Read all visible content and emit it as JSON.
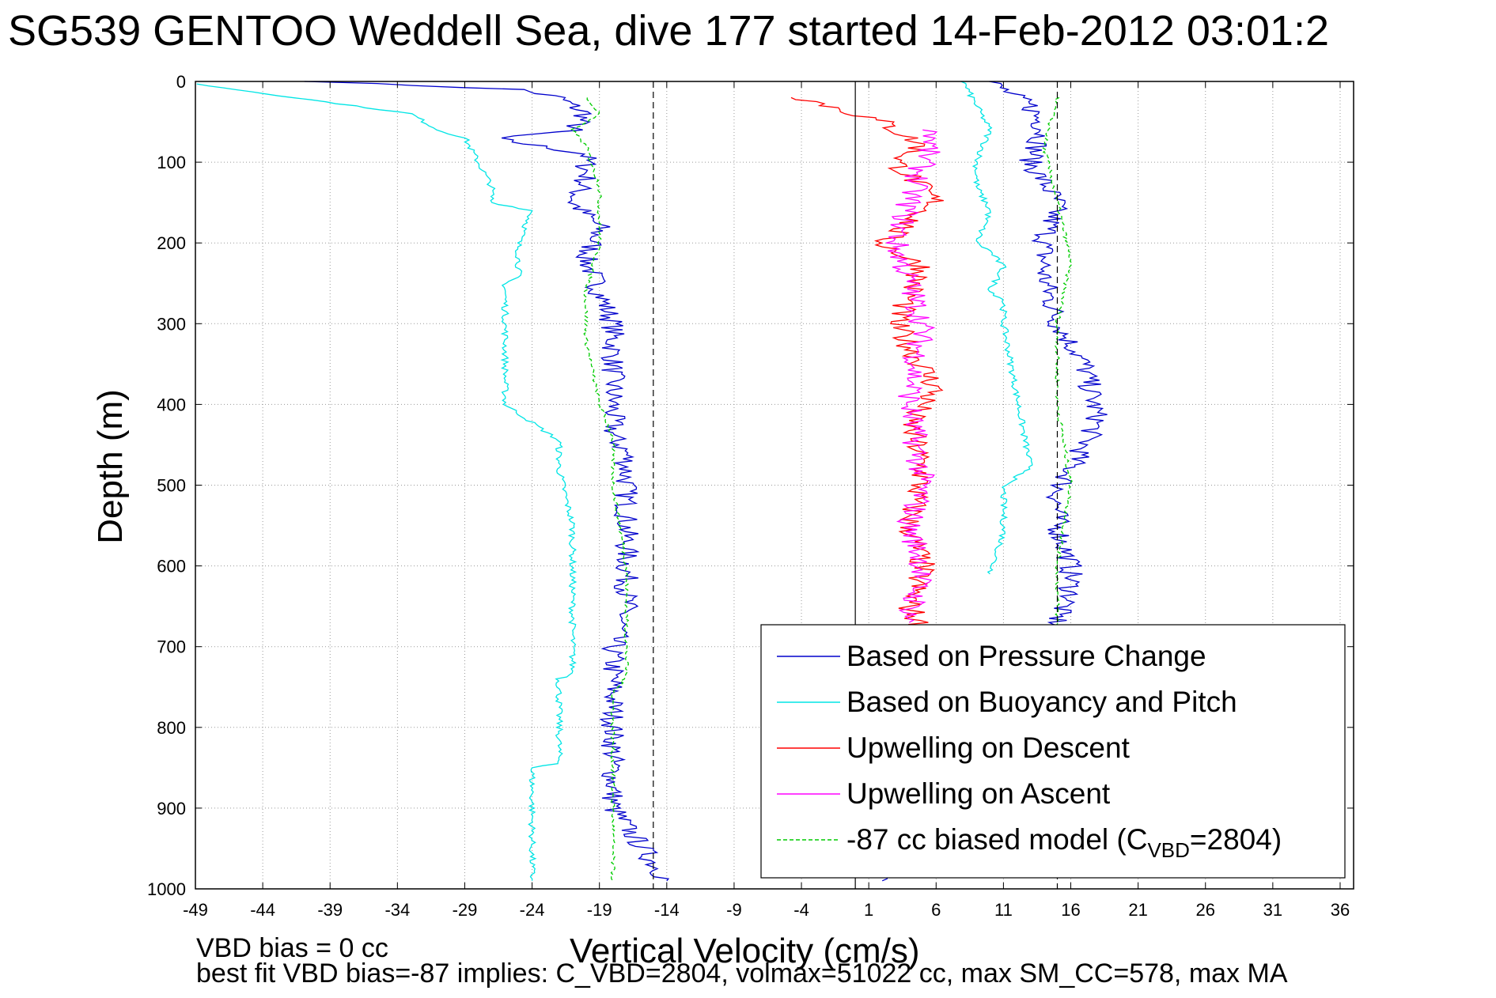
{
  "chart_data": {
    "type": "line",
    "title": "SG539 GENTOO Weddell Sea, dive 177 started 14-Feb-2012 03:01:2",
    "xlabel": "Vertical Velocity (cm/s)",
    "ylabel": "Depth (m)",
    "xlim": [
      -49,
      37
    ],
    "ylim": [
      1000,
      0
    ],
    "y_reversed": true,
    "grid": true,
    "legend_position": "bottom-right",
    "x_ticks": [
      "-49",
      "-44",
      "-39",
      "-34",
      "-29",
      "-24",
      "-19",
      "-14",
      "-9",
      "-4",
      "1",
      "6",
      "11",
      "16",
      "21",
      "26",
      "31",
      "36"
    ],
    "y_ticks": [
      "0",
      "100",
      "200",
      "300",
      "400",
      "500",
      "600",
      "700",
      "800",
      "900",
      "1000"
    ],
    "reference_lines": [
      {
        "x": -15,
        "style": "dashed"
      },
      {
        "x": 0,
        "style": "solid"
      },
      {
        "x": 15,
        "style": "dashed"
      }
    ],
    "legend_labels": {
      "pressure": "Based on Pressure Change",
      "buoyancy": "Based on Buoyancy and Pitch",
      "up_descent": "Upwelling on Descent",
      "up_ascent": "Upwelling on Ascent",
      "model_prefix": "-87 cc biased model (C",
      "model_sub": "VBD",
      "model_suffix": "=2804)"
    },
    "series": [
      {
        "key": "pressure_descent",
        "legend_key": "pressure",
        "color": "#0000cc",
        "style": "solid",
        "x": [
          -40,
          -25,
          -22,
          -20,
          -21,
          -27,
          -20,
          -20,
          -21,
          -19,
          -20,
          -19,
          -18,
          -18,
          -18,
          -18,
          -17,
          -17,
          -17,
          -17,
          -17,
          -18,
          -18,
          -18,
          -18,
          -18,
          -14
        ],
        "y": [
          0,
          10,
          20,
          40,
          60,
          70,
          90,
          120,
          150,
          180,
          220,
          260,
          300,
          350,
          400,
          440,
          460,
          500,
          550,
          600,
          650,
          700,
          750,
          800,
          850,
          900,
          990
        ]
      },
      {
        "key": "pressure_ascent",
        "color": "#0000cc",
        "style": "solid",
        "x": [
          10,
          13,
          14,
          13,
          15,
          14,
          14,
          15,
          17,
          18,
          16,
          15,
          15,
          16,
          16,
          15,
          15,
          14,
          10,
          2
        ],
        "y": [
          0,
          30,
          60,
          100,
          150,
          200,
          240,
          300,
          350,
          420,
          480,
          510,
          550,
          600,
          640,
          660,
          680,
          700,
          950,
          990
        ]
      },
      {
        "key": "buoyancy_descent",
        "legend_key": "buoyancy",
        "color": "#00e5e5",
        "style": "solid",
        "x": [
          -49,
          -33,
          -31,
          -29,
          -28,
          -27,
          -27,
          -24,
          -25,
          -25,
          -26,
          -26,
          -26,
          -22,
          -22,
          -21,
          -21,
          -21,
          -22,
          -22,
          -24,
          -24,
          -24
        ],
        "y": [
          3,
          40,
          60,
          70,
          100,
          130,
          150,
          160,
          200,
          240,
          250,
          300,
          400,
          445,
          480,
          550,
          650,
          735,
          740,
          845,
          850,
          900,
          990
        ]
      },
      {
        "key": "buoyancy_ascent",
        "color": "#00e5e5",
        "style": "solid",
        "x": [
          8,
          9,
          10,
          9,
          9,
          10,
          9,
          10,
          11,
          10,
          11,
          11,
          13,
          11,
          11,
          11,
          10
        ],
        "y": [
          0,
          30,
          60,
          100,
          130,
          160,
          200,
          210,
          230,
          260,
          270,
          300,
          480,
          500,
          520,
          560,
          610
        ]
      },
      {
        "key": "upwelling_descent",
        "legend_key": "up_descent",
        "color": "#ff0000",
        "style": "solid",
        "x": [
          -4,
          2,
          5,
          3,
          6,
          2,
          5,
          3,
          6,
          4,
          5,
          4,
          5,
          4,
          5
        ],
        "y": [
          20,
          50,
          80,
          100,
          150,
          200,
          230,
          300,
          380,
          420,
          480,
          550,
          600,
          650,
          680
        ]
      },
      {
        "key": "upwelling_ascent",
        "legend_key": "up_ascent",
        "color": "#ff00ff",
        "style": "solid",
        "x": [
          6,
          5,
          4,
          3,
          4,
          5,
          4,
          5,
          4,
          5,
          4
        ],
        "y": [
          60,
          100,
          150,
          200,
          250,
          300,
          400,
          500,
          550,
          600,
          670
        ]
      },
      {
        "key": "model_descent",
        "legend_key": "model",
        "color": "#00cc00",
        "style": "dashed",
        "x": [
          -20,
          -19,
          -21,
          -20,
          -19,
          -19,
          -20,
          -20,
          -19,
          -18,
          -18,
          -18,
          -17,
          -17,
          -17,
          -18,
          -18,
          -18,
          -18
        ],
        "y": [
          20,
          40,
          60,
          80,
          130,
          200,
          260,
          320,
          400,
          440,
          460,
          500,
          600,
          700,
          735,
          760,
          850,
          900,
          990
        ]
      },
      {
        "key": "model_ascent",
        "color": "#00cc00",
        "style": "dashed",
        "x": [
          15,
          14,
          15,
          16,
          15,
          15,
          16,
          15,
          15
        ],
        "y": [
          20,
          80,
          150,
          220,
          300,
          400,
          500,
          600,
          680
        ]
      }
    ]
  }
}
